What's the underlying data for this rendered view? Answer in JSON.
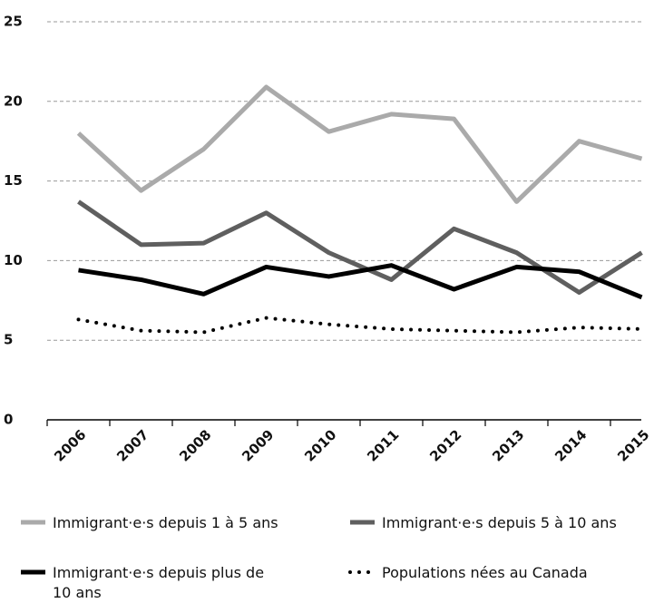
{
  "chart_data": {
    "type": "line",
    "categories": [
      "2006",
      "2007",
      "2008",
      "2009",
      "2010",
      "2011",
      "2012",
      "2013",
      "2014",
      "2015"
    ],
    "series": [
      {
        "name": "Immigrant·e·s depuis 1 à 5 ans",
        "color": "#aaaaaa",
        "line_style": "solid",
        "values": [
          18.0,
          14.4,
          17.0,
          20.9,
          18.1,
          19.2,
          18.9,
          13.7,
          17.5,
          16.4
        ]
      },
      {
        "name": "Immigrant·e·s depuis 5 à 10 ans",
        "color": "#5f5f5f",
        "line_style": "solid",
        "values": [
          13.7,
          11.0,
          11.1,
          13.0,
          10.5,
          8.8,
          12.0,
          10.5,
          8.0,
          10.5
        ]
      },
      {
        "name": "Immigrant·e·s depuis plus de 10 ans",
        "color": "#000000",
        "line_style": "solid",
        "values": [
          9.4,
          8.8,
          7.9,
          9.6,
          9.0,
          9.7,
          8.2,
          9.6,
          9.3,
          7.7
        ]
      },
      {
        "name": "Populations nées au Canada",
        "color": "#000000",
        "line_style": "dotted",
        "values": [
          6.3,
          5.6,
          5.5,
          6.4,
          6.0,
          5.7,
          5.6,
          5.5,
          5.8,
          5.7
        ]
      }
    ],
    "ylim": [
      0,
      25
    ],
    "yticks": [
      0,
      5,
      10,
      15,
      20,
      25
    ],
    "grid": true
  }
}
